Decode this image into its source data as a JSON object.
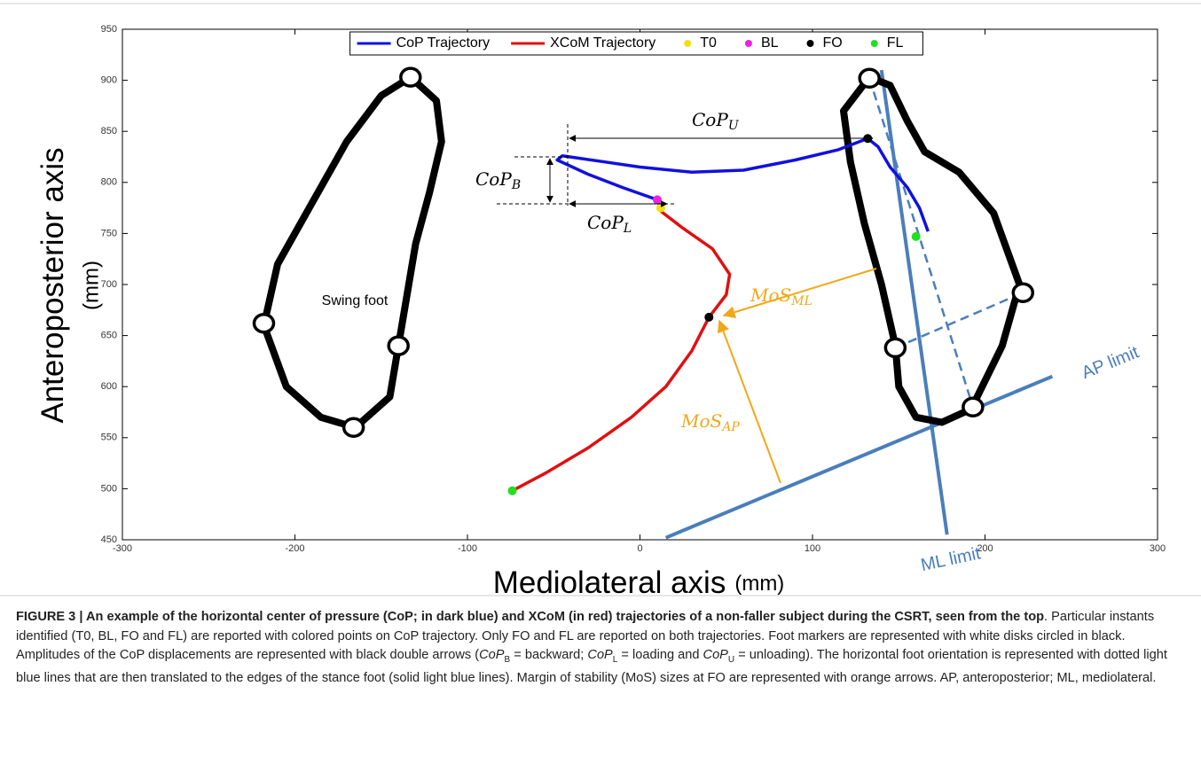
{
  "chart_data": {
    "type": "line",
    "xlim": [
      -300,
      300
    ],
    "xticks": [
      -300,
      -200,
      -100,
      0,
      100,
      200,
      300
    ],
    "ylim": [
      450,
      950
    ],
    "yticks": [
      450,
      500,
      550,
      600,
      650,
      700,
      750,
      800,
      850,
      900,
      950
    ],
    "xlabel": {
      "text": "Mediolateral axis",
      "unit": "(mm)"
    },
    "ylabel": {
      "text": "Anteroposterior axis",
      "unit": "(mm)"
    },
    "legend": "top",
    "series": [
      {
        "name": "CoP Trajectory",
        "kind": "line",
        "color": "#1010e0",
        "x": [
          12,
          10,
          -10,
          -30,
          -48,
          -45,
          -20,
          0,
          30,
          60,
          90,
          115,
          132,
          138,
          145,
          155,
          162,
          167
        ],
        "values": [
          775,
          783,
          795,
          808,
          822,
          826,
          820,
          815,
          810,
          812,
          822,
          832,
          843,
          835,
          815,
          795,
          775,
          752
        ]
      },
      {
        "name": "XCoM Trajectory",
        "kind": "line",
        "color": "#e01010",
        "x": [
          -74,
          -55,
          -30,
          -5,
          15,
          30,
          40,
          50,
          52,
          42,
          25,
          12
        ],
        "values": [
          498,
          515,
          540,
          570,
          600,
          635,
          668,
          690,
          710,
          735,
          755,
          772
        ]
      },
      {
        "name": "T0",
        "kind": "point",
        "color": "#f0e010",
        "x": [
          12
        ],
        "values": [
          775
        ]
      },
      {
        "name": "BL",
        "kind": "point",
        "color": "#f020e0",
        "x": [
          10
        ],
        "values": [
          783
        ]
      },
      {
        "name": "FO",
        "kind": "point",
        "color": "#000000",
        "x": [
          132,
          40
        ],
        "values": [
          843,
          668
        ]
      },
      {
        "name": "FL",
        "kind": "point",
        "color": "#20e020",
        "x": [
          160,
          -74
        ],
        "values": [
          747,
          498
        ]
      }
    ],
    "feet": [
      {
        "label": "Swing foot",
        "x": [
          -133,
          -118,
          -115,
          -122,
          -130,
          -135,
          -140,
          -145,
          -165,
          -185,
          -205,
          -218,
          -210,
          -190,
          -170,
          -150,
          -133
        ],
        "values": [
          903,
          880,
          840,
          790,
          740,
          690,
          640,
          590,
          560,
          570,
          600,
          660,
          720,
          780,
          840,
          885,
          903
        ],
        "markers_x": [
          -133,
          -218,
          -140,
          -166
        ],
        "markers_y": [
          903,
          662,
          640,
          560
        ]
      },
      {
        "x": [
          133,
          145,
          155,
          165,
          185,
          205,
          220,
          210,
          192,
          175,
          160,
          150,
          148,
          140,
          130,
          122,
          118,
          133
        ],
        "values": [
          903,
          895,
          860,
          830,
          810,
          770,
          700,
          640,
          578,
          565,
          570,
          600,
          640,
          700,
          760,
          820,
          870,
          903
        ],
        "markers_x": [
          133,
          222,
          148,
          193
        ],
        "markers_y": [
          902,
          692,
          638,
          580
        ]
      }
    ],
    "foot_lines": [
      {
        "x": [
          140,
          178
        ],
        "values": [
          910,
          455
        ],
        "dashed": false
      },
      {
        "x": [
          15,
          239
        ],
        "values": [
          452,
          610
        ],
        "dashed": false
      },
      {
        "x": [
          133,
          193
        ],
        "values": [
          902,
          580
        ],
        "dashed": true
      },
      {
        "x": [
          148,
          222
        ],
        "values": [
          638,
          692
        ],
        "dashed": true
      }
    ],
    "annotations": {
      "cop_u": {
        "main": "CoP",
        "sub": "U"
      },
      "cop_b": {
        "main": "CoP",
        "sub": "B"
      },
      "cop_l": {
        "main": "CoP",
        "sub": "L"
      },
      "mos_ml": {
        "main": "MoS",
        "sub": "ML"
      },
      "mos_ap": {
        "main": "MoS",
        "sub": "AP"
      },
      "ap_limit": "AP limit",
      "ml_limit": "ML limit"
    }
  },
  "caption": [
    {
      "text": "FIGURE 3 | An example of the horizontal center of pressure (CoP; in dark blue) and XCoM (in red) trajectories of a non-faller subject during the CSRT, seen from the top",
      "style": "bold"
    },
    {
      "text": ". Particular instants identified (T0, BL, FO and FL) are reported with colored points on CoP trajectory. Only FO and FL are reported on both trajectories. Foot markers are represented with white disks circled in black. Amplitudes of the CoP displacements are represented with black double arrows (",
      "style": "normal"
    },
    {
      "text": "CoP",
      "style": "italic"
    },
    {
      "text": "B",
      "style": "sub"
    },
    {
      "text": " = backward; ",
      "style": "normal"
    },
    {
      "text": "CoP",
      "style": "italic"
    },
    {
      "text": "L",
      "style": "sub"
    },
    {
      "text": " = loading and ",
      "style": "normal"
    },
    {
      "text": "CoP",
      "style": "italic"
    },
    {
      "text": "U",
      "style": "sub"
    },
    {
      "text": " = unloading). The horizontal foot orientation is represented with dotted light blue lines that are then translated to the edges of the stance foot (solid light blue lines). Margin of stability (MoS) sizes at FO are represented with orange arrows. AP, anteroposterior; ML, mediolateral.",
      "style": "normal"
    }
  ]
}
